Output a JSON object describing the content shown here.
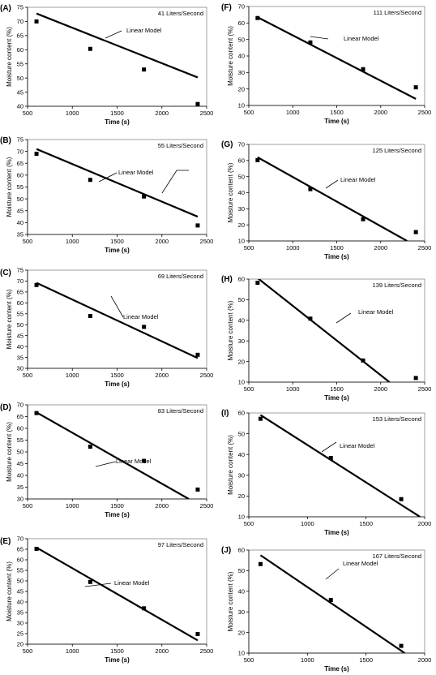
{
  "chart_data": [
    {
      "panel": "(A)",
      "type": "scatter",
      "title": "41 Liters/Second",
      "xlabel": "Time (s)",
      "ylabel": "Moisture content (%)",
      "xlim": [
        500,
        2500
      ],
      "ylim": [
        40,
        75
      ],
      "xticks": [
        500,
        1000,
        1500,
        2000,
        2500
      ],
      "yticks": [
        40,
        45,
        50,
        55,
        60,
        65,
        70,
        75
      ],
      "points": [
        [
          600,
          70
        ],
        [
          1200,
          60.3
        ],
        [
          1800,
          53
        ],
        [
          2400,
          40.8
        ]
      ],
      "model": [
        [
          600,
          72.8
        ],
        [
          2400,
          50.2
        ]
      ],
      "annotation": "Linear Model",
      "grid": false
    },
    {
      "panel": "(B)",
      "type": "scatter",
      "title": "55 Liters/Second",
      "xlabel": "Time (s)",
      "ylabel": "Moisture content (%)",
      "xlim": [
        500,
        2500
      ],
      "ylim": [
        35,
        75
      ],
      "xticks": [
        500,
        1000,
        1500,
        2000,
        2500
      ],
      "yticks": [
        35,
        40,
        45,
        50,
        55,
        60,
        65,
        70,
        75
      ],
      "points": [
        [
          600,
          69
        ],
        [
          1200,
          58
        ],
        [
          1800,
          51
        ],
        [
          2400,
          38.8
        ]
      ],
      "model": [
        [
          600,
          71
        ],
        [
          2400,
          42.5
        ]
      ],
      "annotation": "Linear Model",
      "grid": false
    },
    {
      "panel": "(C)",
      "type": "scatter",
      "title": "69 Liters/Second",
      "xlabel": "Time (s)",
      "ylabel": "Moisture content (%)",
      "xlim": [
        500,
        2500
      ],
      "ylim": [
        30,
        75
      ],
      "xticks": [
        500,
        1000,
        1500,
        2000,
        2500
      ],
      "yticks": [
        30,
        35,
        40,
        45,
        50,
        55,
        60,
        65,
        70,
        75
      ],
      "points": [
        [
          600,
          68.2
        ],
        [
          1200,
          54
        ],
        [
          1800,
          49
        ],
        [
          2400,
          36.2
        ]
      ],
      "model": [
        [
          600,
          69.2
        ],
        [
          2400,
          34.7
        ]
      ],
      "annotation": "Linear Model",
      "grid": false
    },
    {
      "panel": "(D)",
      "type": "scatter",
      "title": "83 Liters/Second",
      "xlabel": "Time (s)",
      "ylabel": "Moisture content (%)",
      "xlim": [
        500,
        2500
      ],
      "ylim": [
        30,
        70
      ],
      "xticks": [
        500,
        1000,
        1500,
        2000,
        2500
      ],
      "yticks": [
        30,
        35,
        40,
        45,
        50,
        55,
        60,
        65,
        70
      ],
      "points": [
        [
          600,
          66.5
        ],
        [
          1200,
          52.2
        ],
        [
          1800,
          46.2
        ],
        [
          2400,
          34
        ]
      ],
      "model": [
        [
          600,
          66.8
        ],
        [
          2300,
          30
        ]
      ],
      "annotation": "Linear Model",
      "grid": false
    },
    {
      "panel": "(E)",
      "type": "scatter",
      "title": "97 Liters/Second",
      "xlabel": "Time (s)",
      "ylabel": "Moisture content (%)",
      "xlim": [
        500,
        2500
      ],
      "ylim": [
        20,
        70
      ],
      "xticks": [
        500,
        1000,
        1500,
        2000,
        2500
      ],
      "yticks": [
        20,
        25,
        30,
        35,
        40,
        45,
        50,
        55,
        60,
        65,
        70
      ],
      "points": [
        [
          600,
          65.2
        ],
        [
          1200,
          49.5
        ],
        [
          1800,
          37
        ],
        [
          2400,
          24.8
        ]
      ],
      "model": [
        [
          600,
          65.8
        ],
        [
          2400,
          21.8
        ]
      ],
      "annotation": "Linear Model",
      "grid": false
    },
    {
      "panel": "(F)",
      "type": "scatter",
      "title": "111 Liters/Second",
      "xlabel": "Time (s)",
      "ylabel": "Moisture content (%)",
      "xlim": [
        500,
        2500
      ],
      "ylim": [
        10,
        70
      ],
      "xticks": [
        500,
        1000,
        1500,
        2000,
        2500
      ],
      "yticks": [
        10,
        20,
        30,
        40,
        50,
        60,
        70
      ],
      "points": [
        [
          600,
          63
        ],
        [
          1200,
          48.2
        ],
        [
          1800,
          32
        ],
        [
          2400,
          21
        ]
      ],
      "model": [
        [
          600,
          63.5
        ],
        [
          2400,
          14
        ]
      ],
      "annotation": "Linear Model",
      "grid": false
    },
    {
      "panel": "(G)",
      "type": "scatter",
      "title": "125 Liters/Second",
      "xlabel": "Time (s)",
      "ylabel": "Moisture content (%)",
      "xlim": [
        500,
        2500
      ],
      "ylim": [
        10,
        70
      ],
      "xticks": [
        500,
        1000,
        1500,
        2000,
        2500
      ],
      "yticks": [
        10,
        20,
        30,
        40,
        50,
        60,
        70
      ],
      "points": [
        [
          600,
          60.2
        ],
        [
          1200,
          42.2
        ],
        [
          1800,
          23.5
        ],
        [
          2400,
          15.5
        ]
      ],
      "model": [
        [
          600,
          62
        ],
        [
          2300,
          10
        ]
      ],
      "annotation": "Linear Model",
      "grid": false
    },
    {
      "panel": "(H)",
      "type": "scatter",
      "title": "139 Liters/Second",
      "xlabel": "Time (s)",
      "ylabel": "Moisture content (%)",
      "xlim": [
        500,
        2500
      ],
      "ylim": [
        10,
        60
      ],
      "xticks": [
        500,
        1000,
        1500,
        2000,
        2500
      ],
      "yticks": [
        10,
        20,
        30,
        40,
        50,
        60
      ],
      "points": [
        [
          600,
          58.2
        ],
        [
          1200,
          40.8
        ],
        [
          1800,
          20.5
        ],
        [
          2400,
          12
        ]
      ],
      "model": [
        [
          600,
          60.5
        ],
        [
          2100,
          10
        ]
      ],
      "annotation": "Linear Model",
      "grid": false
    },
    {
      "panel": "(I)",
      "type": "scatter",
      "title": "153 Liters/Second",
      "xlabel": "Time (s)",
      "ylabel": "Moisture content (%)",
      "xlim": [
        500,
        2000
      ],
      "ylim": [
        10,
        60
      ],
      "xticks": [
        500,
        1000,
        1500,
        2000
      ],
      "yticks": [
        10,
        20,
        30,
        40,
        50,
        60
      ],
      "points": [
        [
          600,
          57.2
        ],
        [
          1200,
          38.3
        ],
        [
          1800,
          18.5
        ]
      ],
      "model": [
        [
          600,
          59
        ],
        [
          1960,
          10
        ]
      ],
      "annotation": "Linear Model",
      "grid": false
    },
    {
      "panel": "(J)",
      "type": "scatter",
      "title": "167 Liters/Second",
      "xlabel": "Time (s)",
      "ylabel": "Moisture content (%)",
      "xlim": [
        500,
        2000
      ],
      "ylim": [
        10,
        60
      ],
      "xticks": [
        500,
        1000,
        1500,
        2000
      ],
      "yticks": [
        10,
        20,
        30,
        40,
        50,
        60
      ],
      "points": [
        [
          600,
          53.2
        ],
        [
          1200,
          35.8
        ],
        [
          1800,
          13.5
        ]
      ],
      "model": [
        [
          600,
          57.5
        ],
        [
          1830,
          10
        ]
      ],
      "annotation": "Linear Model",
      "grid": false
    }
  ]
}
